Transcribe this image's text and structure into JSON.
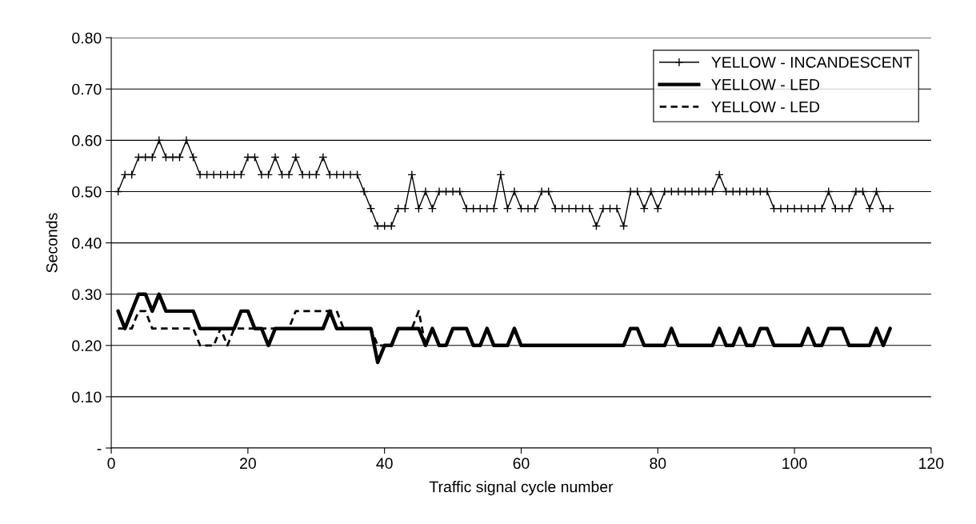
{
  "chart_data": {
    "type": "line",
    "xlabel": "Traffic signal cycle number",
    "ylabel": "Seconds",
    "xlim": [
      0,
      120
    ],
    "xticks": [
      0,
      20,
      40,
      60,
      80,
      100,
      120
    ],
    "ylim": [
      0,
      0.8
    ],
    "yticks": [
      {
        "value": 0,
        "label": "-"
      },
      {
        "value": 0.1,
        "label": "0.10"
      },
      {
        "value": 0.2,
        "label": "0.20"
      },
      {
        "value": 0.3,
        "label": "0.30"
      },
      {
        "value": 0.4,
        "label": "0.40"
      },
      {
        "value": 0.5,
        "label": "0.50"
      },
      {
        "value": 0.6,
        "label": "0.60"
      },
      {
        "value": 0.7,
        "label": "0.70"
      },
      {
        "value": 0.8,
        "label": "0.80"
      }
    ],
    "grid": "y",
    "legend": "top right",
    "series": [
      {
        "name": "YELLOW - INCANDESCENT",
        "color": "#000000",
        "marker": "cross",
        "line_style": "solid",
        "x": [
          1,
          2,
          3,
          4,
          5,
          6,
          7,
          8,
          9,
          10,
          11,
          12,
          13,
          14,
          15,
          16,
          17,
          18,
          19,
          20,
          21,
          22,
          23,
          24,
          25,
          26,
          27,
          28,
          29,
          30,
          31,
          32,
          33,
          34,
          35,
          36,
          37,
          38,
          39,
          40,
          41,
          42,
          43,
          44,
          45,
          46,
          47,
          48,
          49,
          50,
          51,
          52,
          53,
          54,
          55,
          56,
          57,
          58,
          59,
          60,
          61,
          62,
          63,
          64,
          65,
          66,
          67,
          68,
          69,
          70,
          71,
          72,
          73,
          74,
          75,
          76,
          77,
          78,
          79,
          80,
          81,
          82,
          83,
          84,
          85,
          86,
          87,
          88,
          89,
          90,
          91,
          92,
          93,
          94,
          95,
          96,
          97,
          98,
          99,
          100,
          101,
          102,
          103,
          104,
          105,
          106,
          107,
          108,
          109,
          110,
          111,
          112,
          113,
          114
        ],
        "values": [
          0.5,
          0.533,
          0.533,
          0.567,
          0.567,
          0.567,
          0.6,
          0.567,
          0.567,
          0.567,
          0.6,
          0.567,
          0.533,
          0.533,
          0.533,
          0.533,
          0.533,
          0.533,
          0.533,
          0.567,
          0.567,
          0.533,
          0.533,
          0.567,
          0.533,
          0.533,
          0.567,
          0.533,
          0.533,
          0.533,
          0.567,
          0.533,
          0.533,
          0.533,
          0.533,
          0.533,
          0.5,
          0.467,
          0.433,
          0.433,
          0.433,
          0.467,
          0.467,
          0.533,
          0.467,
          0.5,
          0.467,
          0.5,
          0.5,
          0.5,
          0.5,
          0.467,
          0.467,
          0.467,
          0.467,
          0.467,
          0.533,
          0.467,
          0.5,
          0.467,
          0.467,
          0.467,
          0.5,
          0.5,
          0.467,
          0.467,
          0.467,
          0.467,
          0.467,
          0.467,
          0.433,
          0.467,
          0.467,
          0.467,
          0.433,
          0.5,
          0.5,
          0.467,
          0.5,
          0.467,
          0.5,
          0.5,
          0.5,
          0.5,
          0.5,
          0.5,
          0.5,
          0.5,
          0.533,
          0.5,
          0.5,
          0.5,
          0.5,
          0.5,
          0.5,
          0.5,
          0.467,
          0.467,
          0.467,
          0.467,
          0.467,
          0.467,
          0.467,
          0.467,
          0.5,
          0.467,
          0.467,
          0.467,
          0.5,
          0.5,
          0.467,
          0.5,
          0.467,
          0.467
        ]
      },
      {
        "name": "YELLOW - LED",
        "color": "#000000",
        "marker": "none",
        "line_style": "solid",
        "x": [
          1,
          2,
          3,
          4,
          5,
          6,
          7,
          8,
          9,
          10,
          11,
          12,
          13,
          14,
          15,
          16,
          17,
          18,
          19,
          20,
          21,
          22,
          23,
          24,
          25,
          26,
          27,
          28,
          29,
          30,
          31,
          32,
          33,
          34,
          35,
          36,
          37,
          38,
          39,
          40,
          41,
          42,
          43,
          44,
          45,
          46,
          47,
          48,
          49,
          50,
          51,
          52,
          53,
          54,
          55,
          56,
          57,
          58,
          59,
          60,
          61,
          62,
          63,
          64,
          65,
          66,
          67,
          68,
          69,
          70,
          71,
          72,
          73,
          74,
          75,
          76,
          77,
          78,
          79,
          80,
          81,
          82,
          83,
          84,
          85,
          86,
          87,
          88,
          89,
          90,
          91,
          92,
          93,
          94,
          95,
          96,
          97,
          98,
          99,
          100,
          101,
          102,
          103,
          104,
          105,
          106,
          107,
          108,
          109,
          110,
          111,
          112,
          113,
          114
        ],
        "values": [
          0.267,
          0.233,
          0.267,
          0.3,
          0.3,
          0.267,
          0.3,
          0.267,
          0.267,
          0.267,
          0.267,
          0.267,
          0.233,
          0.233,
          0.233,
          0.233,
          0.233,
          0.233,
          0.267,
          0.267,
          0.233,
          0.233,
          0.2,
          0.233,
          0.233,
          0.233,
          0.233,
          0.233,
          0.233,
          0.233,
          0.233,
          0.267,
          0.233,
          0.233,
          0.233,
          0.233,
          0.233,
          0.233,
          0.167,
          0.2,
          0.2,
          0.233,
          0.233,
          0.233,
          0.233,
          0.2,
          0.233,
          0.2,
          0.2,
          0.233,
          0.233,
          0.233,
          0.2,
          0.2,
          0.233,
          0.2,
          0.2,
          0.2,
          0.233,
          0.2,
          0.2,
          0.2,
          0.2,
          0.2,
          0.2,
          0.2,
          0.2,
          0.2,
          0.2,
          0.2,
          0.2,
          0.2,
          0.2,
          0.2,
          0.2,
          0.233,
          0.233,
          0.2,
          0.2,
          0.2,
          0.2,
          0.233,
          0.2,
          0.2,
          0.2,
          0.2,
          0.2,
          0.2,
          0.233,
          0.2,
          0.2,
          0.233,
          0.2,
          0.2,
          0.233,
          0.233,
          0.2,
          0.2,
          0.2,
          0.2,
          0.2,
          0.233,
          0.2,
          0.2,
          0.233,
          0.233,
          0.233,
          0.2,
          0.2,
          0.2,
          0.2,
          0.233,
          0.2,
          0.233
        ]
      },
      {
        "name": "YELLOW - LED",
        "color": "#000000",
        "marker": "none",
        "line_style": "dashed",
        "x": [
          1,
          2,
          3,
          4,
          5,
          6,
          7,
          8,
          9,
          10,
          11,
          12,
          13,
          14,
          15,
          16,
          17,
          18,
          19,
          20,
          21,
          22,
          23,
          24,
          25,
          26,
          27,
          28,
          29,
          30,
          31,
          32,
          33,
          34,
          35,
          36,
          37,
          38,
          39,
          40,
          41,
          42,
          43,
          44,
          45,
          46
        ],
        "values": [
          0.233,
          0.233,
          0.233,
          0.267,
          0.267,
          0.233,
          0.233,
          0.233,
          0.233,
          0.233,
          0.233,
          0.233,
          0.2,
          0.2,
          0.2,
          0.233,
          0.2,
          0.233,
          0.233,
          0.233,
          0.233,
          0.233,
          0.233,
          0.233,
          0.233,
          0.233,
          0.267,
          0.267,
          0.267,
          0.267,
          0.267,
          0.267,
          0.267,
          0.233,
          0.233,
          0.233,
          0.233,
          0.233,
          0.2,
          0.2,
          0.2,
          0.233,
          0.233,
          0.233,
          0.267,
          0.2
        ]
      }
    ]
  }
}
